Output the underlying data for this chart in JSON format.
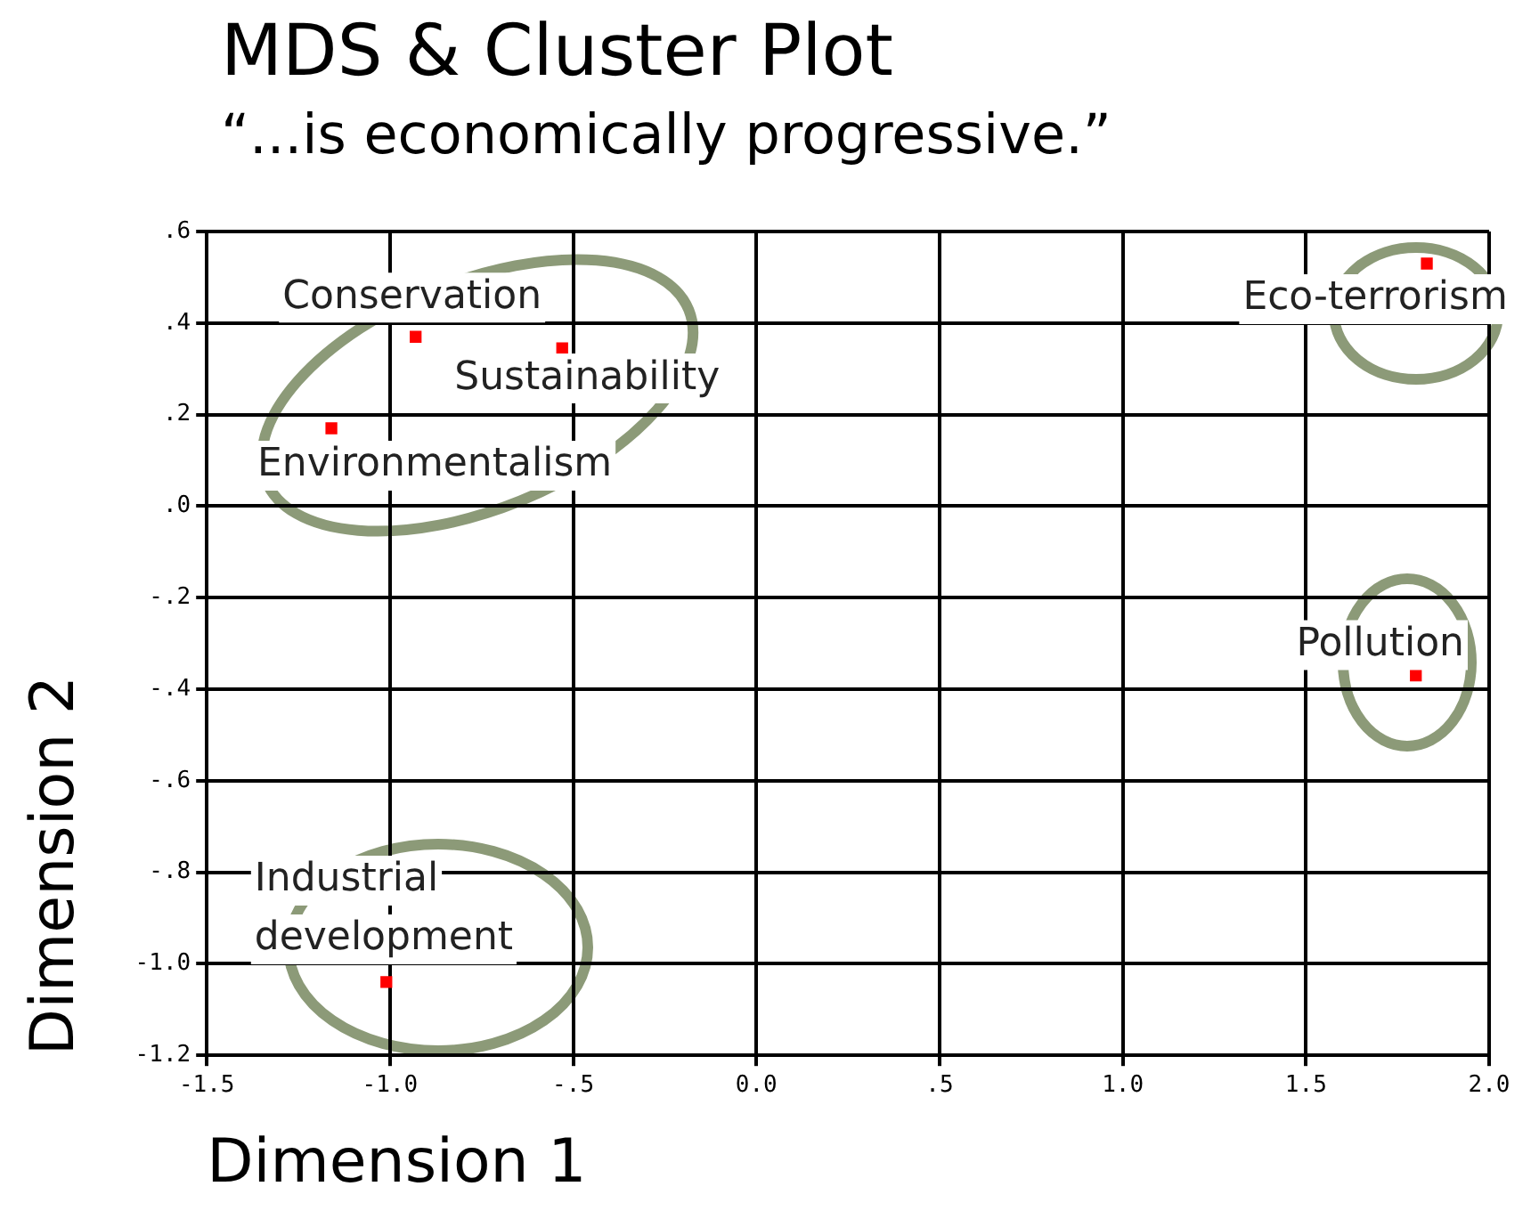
{
  "chart_data": {
    "type": "scatter",
    "title": "MDS & Cluster Plot",
    "subtitle": "“...is economically progressive.”",
    "xlabel": "Dimension 1",
    "ylabel": "Dimension 2",
    "series": [
      {
        "color": "#ff0000",
        "x": [
          -0.93,
          -0.53,
          -1.16,
          1.83,
          1.8,
          -1.01
        ],
        "values": [
          0.37,
          0.345,
          0.17,
          0.53,
          -0.37,
          -1.04
        ]
      }
    ],
    "annotations": [
      {
        "text": "Conservation",
        "x": -0.93,
        "y": 0.37
      },
      {
        "text": "Sustainability",
        "x": -0.53,
        "y": 0.345
      },
      {
        "text": "Environmentalism",
        "x": -1.16,
        "y": 0.17
      },
      {
        "text": "Eco-terrorism",
        "x": 1.83,
        "y": 0.53
      },
      {
        "text": "Pollution",
        "x": 1.8,
        "y": -0.37
      },
      {
        "text": "Industrial development",
        "x": -1.01,
        "y": -1.04
      }
    ],
    "xlim": [
      -1.5,
      2.0
    ],
    "ylim": [
      -1.2,
      0.6
    ],
    "xticks": [
      -1.5,
      {
        "value": -1.0,
        "label": "-1.0"
      },
      {
        "value": -0.5,
        "label": "-.5"
      },
      {
        "value": 0,
        "label": "0.0"
      },
      {
        "value": 0.5,
        "label": ".5"
      },
      {
        "value": 1.0,
        "label": "1.0"
      },
      1.5,
      {
        "value": 2.0,
        "label": "2.0"
      }
    ],
    "yticks": [
      {
        "value": 0.6,
        "label": ".6"
      },
      {
        "value": 0.4,
        "label": ".4"
      },
      {
        "value": 0.2,
        "label": ".2"
      },
      {
        "value": 0,
        "label": ".0"
      },
      {
        "value": -0.2,
        "label": "-.2"
      },
      {
        "value": -0.4,
        "label": "-.4"
      },
      {
        "value": -0.6,
        "label": "-.6"
      },
      {
        "value": -0.8,
        "label": "-.8"
      },
      {
        "value": -1.0,
        "label": "-1.0"
      },
      -1.2
    ],
    "grid": true,
    "marker": "square",
    "legend": false
  }
}
